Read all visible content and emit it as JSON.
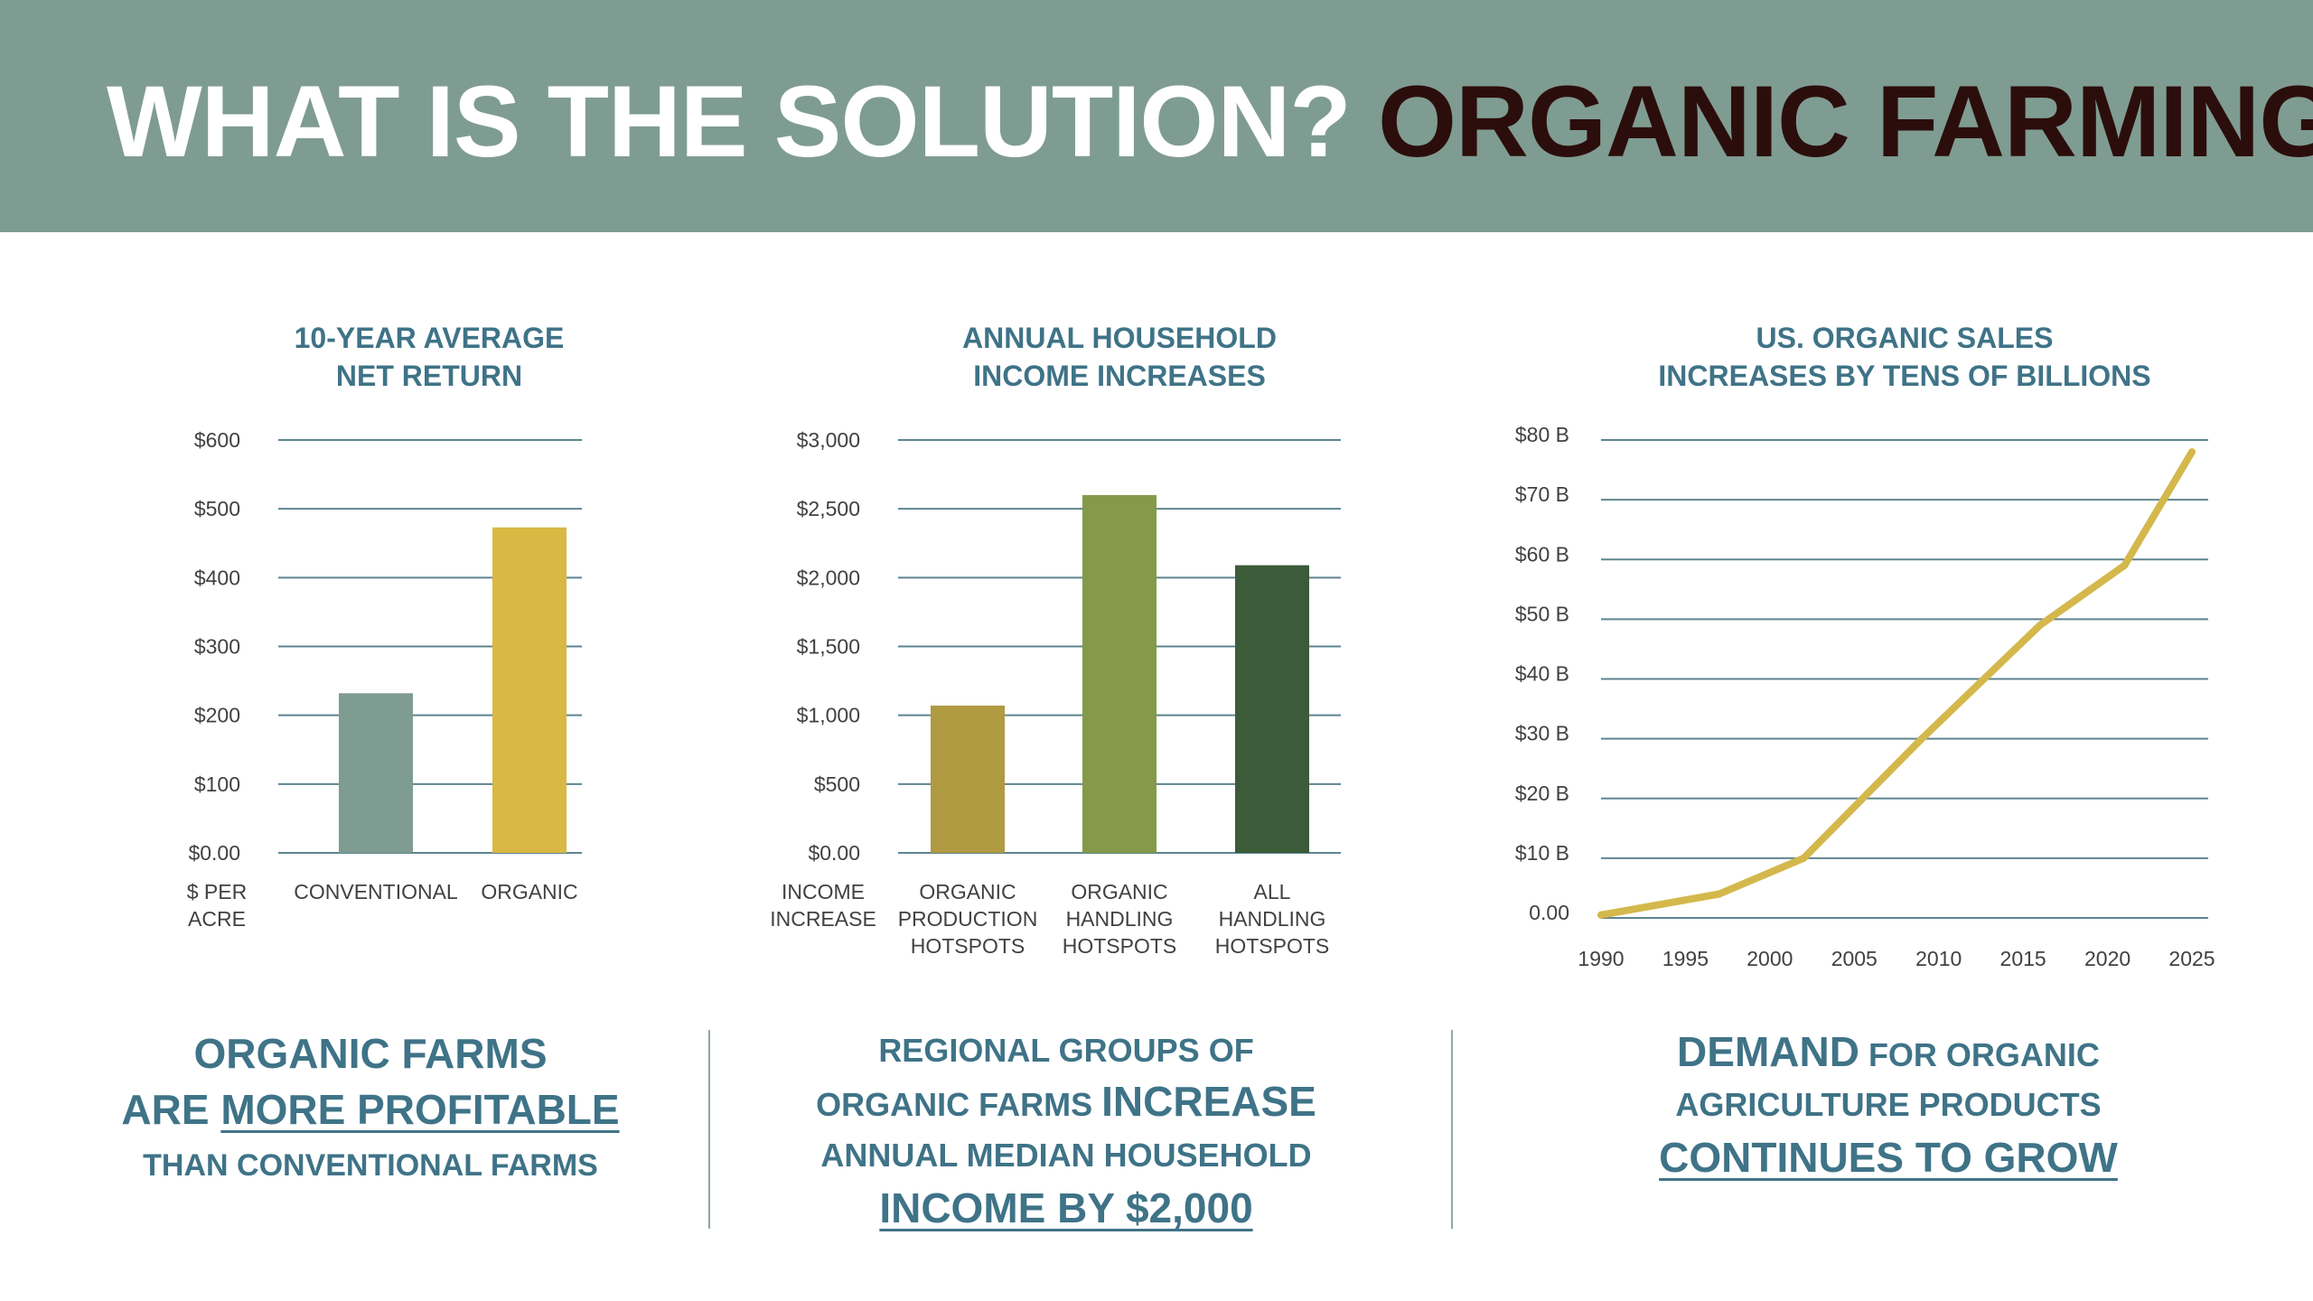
{
  "header": {
    "title_white": "WHAT IS THE SOLUTION?",
    "title_dark": "ORGANIC FARMING"
  },
  "colors": {
    "banner": "#7f9c92",
    "title_white": "#ffffff",
    "title_dark": "#2b0e0b",
    "teal_text": "#3f7387",
    "bar_sage": "#7f9c92",
    "bar_mustard": "#d9b843",
    "bar_olive": "#b09a42",
    "bar_green": "#85994a",
    "bar_dark_green": "#3b5b39",
    "line_gold": "#d4b84c",
    "gridline": "#5e8590"
  },
  "chart_data": [
    {
      "type": "bar",
      "title": [
        "10-YEAR AVERAGE",
        "NET RETURN"
      ],
      "y_ticks": [
        "$600",
        "$500",
        "$400",
        "$300",
        "$200",
        "$100",
        "$0.00"
      ],
      "ylim": [
        0,
        600
      ],
      "axis_label": [
        "$ PER",
        "ACRE"
      ],
      "categories": [
        [
          "CONVENTIONAL"
        ],
        [
          "ORGANIC"
        ]
      ],
      "values": [
        232,
        473
      ],
      "bar_colors": [
        "#7f9c92",
        "#d9b843"
      ],
      "grid": true,
      "legend": "none"
    },
    {
      "type": "bar",
      "title": [
        "ANNUAL HOUSEHOLD",
        "INCOME INCREASES"
      ],
      "y_ticks": [
        "$3,000",
        "$2,500",
        "$2,000",
        "$1,500",
        "$1,000",
        "$500",
        "$0.00"
      ],
      "ylim": [
        0,
        3000
      ],
      "axis_label": [
        "INCOME",
        "INCREASE"
      ],
      "categories": [
        [
          "ORGANIC",
          "PRODUCTION",
          "HOTSPOTS"
        ],
        [
          "ORGANIC",
          "HANDLING",
          "HOTSPOTS"
        ],
        [
          "ALL",
          "HANDLING",
          "HOTSPOTS"
        ]
      ],
      "values": [
        1070,
        2600,
        2090
      ],
      "bar_colors": [
        "#b09a42",
        "#85994a",
        "#3b5b39"
      ],
      "grid": true,
      "legend": "none"
    },
    {
      "type": "line",
      "title": [
        "US. ORGANIC SALES",
        "INCREASES BY TENS OF BILLIONS"
      ],
      "y_ticks": [
        "$80 B",
        "$70 B",
        "$60 B",
        "$50 B",
        "$40 B",
        "$30 B",
        "$20 B",
        "$10 B",
        "0.00"
      ],
      "ylim": [
        0,
        80
      ],
      "x_ticks": [
        "1990",
        "1995",
        "2000",
        "2005",
        "2010",
        "2015",
        "2020",
        "2025"
      ],
      "xlim": [
        1990,
        2025
      ],
      "x": [
        1990,
        1997,
        2002,
        2009,
        2016,
        2021,
        2025
      ],
      "values": [
        0.5,
        4,
        10,
        30,
        49,
        59,
        78
      ],
      "line_color": "#d4b84c",
      "grid": true,
      "legend": "none"
    }
  ],
  "captions": {
    "left": {
      "line1": "ORGANIC FARMS",
      "line2_pre": "ARE ",
      "line2_u": "MORE PROFITABLE",
      "line3": "THAN CONVENTIONAL FARMS"
    },
    "middle": {
      "line1": "REGIONAL GROUPS OF",
      "line2_pre": "ORGANIC FARMS ",
      "line2_big": "INCREASE",
      "line3": "ANNUAL MEDIAN HOUSEHOLD",
      "line4_u": "INCOME BY $2,000"
    },
    "right": {
      "line1_big": "DEMAND",
      "line1_rest": " FOR ORGANIC",
      "line2": "AGRICULTURE PRODUCTS",
      "line3_u": "CONTINUES TO GROW"
    }
  }
}
